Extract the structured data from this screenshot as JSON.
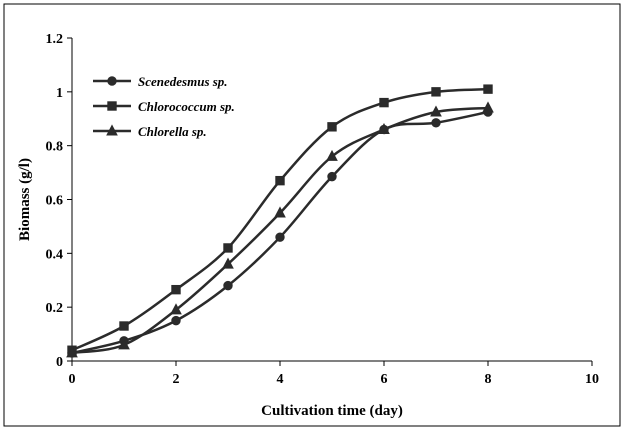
{
  "chart_data": {
    "type": "line",
    "title": "",
    "xlabel": "Cultivation time (day)",
    "ylabel": "Biomass (g/l)",
    "xlim": [
      0,
      10
    ],
    "ylim": [
      0,
      1.2
    ],
    "x_ticks": [
      "0",
      "2",
      "4",
      "6",
      "8",
      "10"
    ],
    "y_ticks": [
      "0",
      "0.2",
      "0.4",
      "0.6",
      "0.8",
      "1",
      "1.2"
    ],
    "grid": false,
    "legend_position": "top-left",
    "series": [
      {
        "name": "Scenedesmus sp.",
        "marker": "circle",
        "x": [
          0,
          1,
          2,
          3,
          4,
          5,
          6,
          7,
          8
        ],
        "y": [
          0.03,
          0.075,
          0.15,
          0.28,
          0.46,
          0.685,
          0.86,
          0.885,
          0.925
        ]
      },
      {
        "name": "Chlorococcum sp.",
        "marker": "square",
        "x": [
          0,
          1,
          2,
          3,
          4,
          5,
          6,
          7,
          8
        ],
        "y": [
          0.04,
          0.13,
          0.265,
          0.42,
          0.67,
          0.87,
          0.96,
          1.0,
          1.01
        ]
      },
      {
        "name": "Chlorella sp.",
        "marker": "triangle",
        "x": [
          0,
          1,
          2,
          3,
          4,
          5,
          6,
          7,
          8
        ],
        "y": [
          0.03,
          0.06,
          0.19,
          0.36,
          0.55,
          0.76,
          0.86,
          0.925,
          0.94
        ]
      }
    ],
    "colors": {
      "series": "#2b2b2b",
      "axis": "#000000",
      "background": "#ffffff"
    }
  }
}
